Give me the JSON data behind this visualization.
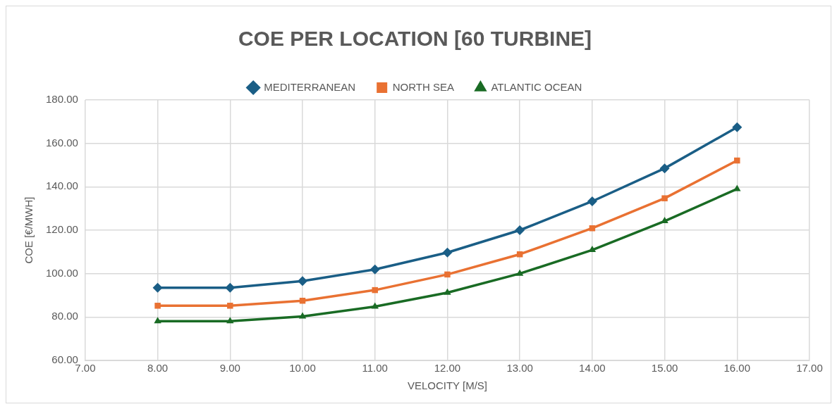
{
  "chart_data": {
    "type": "line",
    "title": "COE PER LOCATION [60 TURBINE]",
    "xlabel": "VELOCITY [M/S]",
    "ylabel": "COE [€/MWH]",
    "x": [
      8,
      9,
      10,
      11,
      12,
      13,
      14,
      15,
      16
    ],
    "series": [
      {
        "name": "MEDITERRANEAN",
        "color": "#1a5e86",
        "marker": "diamond",
        "values": [
          93.5,
          93.5,
          96.6,
          101.9,
          109.7,
          120,
          133.3,
          148.5,
          167.4
        ]
      },
      {
        "name": "NORTH SEA",
        "color": "#e97132",
        "marker": "square",
        "values": [
          85.2,
          85.2,
          87.5,
          92.4,
          99.6,
          108.9,
          120.9,
          134.7,
          152.1
        ]
      },
      {
        "name": "ATLANTIC OCEAN",
        "color": "#196b24",
        "marker": "triangle",
        "values": [
          78.1,
          78.1,
          80.3,
          84.8,
          91.2,
          100,
          110.9,
          124.2,
          139
        ]
      }
    ],
    "xlim": [
      7,
      17
    ],
    "ylim": [
      60,
      180
    ],
    "xticks": [
      {
        "value": 7,
        "label": "7.00"
      },
      {
        "value": 8,
        "label": "8.00"
      },
      {
        "value": 9,
        "label": "9.00"
      },
      {
        "value": 10,
        "label": "10.00"
      },
      {
        "value": 11,
        "label": "11.00"
      },
      {
        "value": 12,
        "label": "12.00"
      },
      {
        "value": 13,
        "label": "13.00"
      },
      {
        "value": 14,
        "label": "14.00"
      },
      {
        "value": 15,
        "label": "15.00"
      },
      {
        "value": 16,
        "label": "16.00"
      },
      {
        "value": 17,
        "label": "17.00"
      }
    ],
    "yticks": [
      {
        "value": 60,
        "label": "60.00"
      },
      {
        "value": 80,
        "label": "80.00"
      },
      {
        "value": 100,
        "label": "100.00"
      },
      {
        "value": 120,
        "label": "120.00"
      },
      {
        "value": 140,
        "label": "140.00"
      },
      {
        "value": 160,
        "label": "160.00"
      },
      {
        "value": 180,
        "label": "180.00"
      }
    ],
    "grid": true,
    "legend": "top",
    "line_style": "solid"
  }
}
